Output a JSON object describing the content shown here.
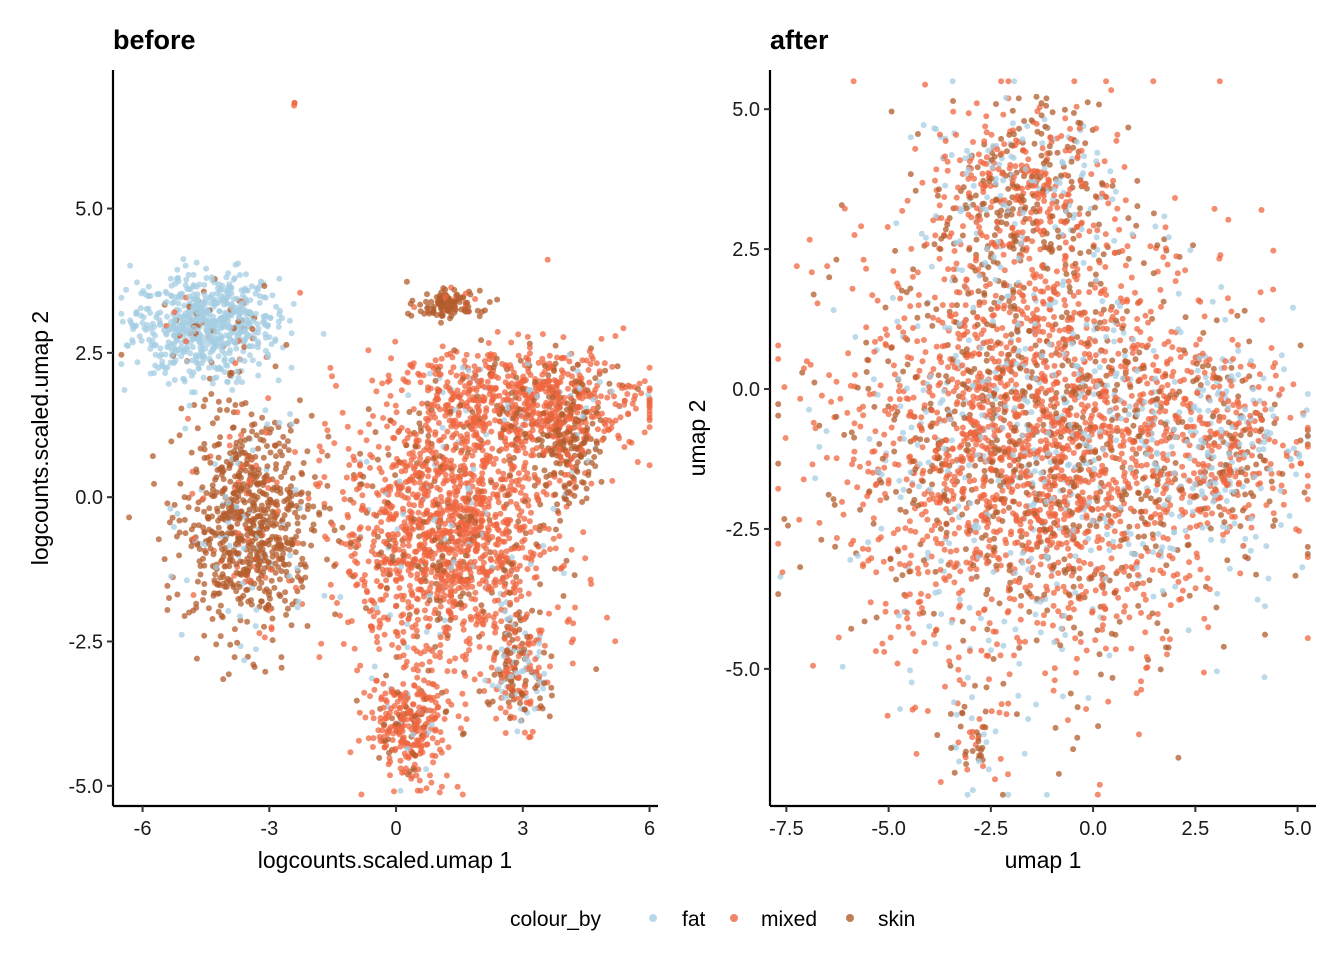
{
  "colors": {
    "fat": "#a6cee3",
    "mixed": "#f0653f",
    "skin": "#b35c2c"
  },
  "legend": {
    "title": "colour_by",
    "items": [
      "fat",
      "mixed",
      "skin"
    ],
    "position": "bottom"
  },
  "chart_data": [
    {
      "type": "scatter",
      "title": "before",
      "xlabel": "logcounts.scaled.umap 1",
      "ylabel": "logcounts.scaled.umap 2",
      "xlim": [
        -6.7,
        6.2
      ],
      "ylim": [
        -5.35,
        7.4
      ],
      "xticks": [
        "-6",
        "-3",
        "0",
        "3",
        "6"
      ],
      "xtick_values": [
        -6,
        -3,
        0,
        3,
        6
      ],
      "yticks": [
        "-5.0",
        "-2.5",
        "0.0",
        "2.5",
        "5.0"
      ],
      "ytick_values": [
        -5,
        -2.5,
        0,
        2.5,
        5
      ],
      "grid": false,
      "clusters": [
        {
          "center": [
            -4.5,
            3.0
          ],
          "spread": [
            0.85,
            0.45
          ],
          "n": 700,
          "mix": [
            0.93,
            0.02,
            0.05
          ]
        },
        {
          "center": [
            -3.5,
            -0.5
          ],
          "spread": [
            0.75,
            0.95
          ],
          "n": 800,
          "mix": [
            0.06,
            0.1,
            0.84
          ]
        },
        {
          "center": [
            1.2,
            -0.6
          ],
          "spread": [
            1.25,
            1.1
          ],
          "n": 1500,
          "mix": [
            0.03,
            0.82,
            0.15
          ]
        },
        {
          "center": [
            3.0,
            1.7
          ],
          "spread": [
            1.5,
            0.45
          ],
          "n": 700,
          "mix": [
            0.05,
            0.8,
            0.15
          ]
        },
        {
          "center": [
            1.2,
            3.35
          ],
          "spread": [
            0.4,
            0.12
          ],
          "n": 120,
          "mix": [
            0.0,
            0.1,
            0.9
          ]
        },
        {
          "center": [
            0.3,
            -4.0
          ],
          "spread": [
            0.5,
            0.45
          ],
          "n": 300,
          "mix": [
            0.05,
            0.8,
            0.15
          ]
        },
        {
          "center": [
            2.9,
            -3.0
          ],
          "spread": [
            0.35,
            0.5
          ],
          "n": 200,
          "mix": [
            0.25,
            0.35,
            0.4
          ]
        },
        {
          "center": [
            4.0,
            0.8
          ],
          "spread": [
            0.4,
            0.5
          ],
          "n": 200,
          "mix": [
            0.05,
            0.2,
            0.75
          ]
        },
        {
          "center": [
            -2.4,
            6.8
          ],
          "spread": [
            0.02,
            0.02
          ],
          "n": 3,
          "mix": [
            0.0,
            1.0,
            0.0
          ]
        }
      ]
    },
    {
      "type": "scatter",
      "title": "after",
      "xlabel": "umap 1",
      "ylabel": "umap 2",
      "xlim": [
        -7.9,
        5.45
      ],
      "ylim": [
        -7.45,
        5.7
      ],
      "xticks": [
        "-7.5",
        "-5.0",
        "-2.5",
        "0.0",
        "2.5",
        "5.0"
      ],
      "xtick_values": [
        -7.5,
        -5,
        -2.5,
        0,
        2.5,
        5
      ],
      "yticks": [
        "-5.0",
        "-2.5",
        "0.0",
        "2.5",
        "5.0"
      ],
      "ytick_values": [
        -5,
        -2.5,
        0,
        2.5,
        5
      ],
      "grid": false,
      "clusters": [
        {
          "center": [
            -1.3,
            -1.0
          ],
          "spread": [
            2.3,
            2.0
          ],
          "n": 3000,
          "mix": [
            0.15,
            0.6,
            0.25
          ]
        },
        {
          "center": [
            -1.8,
            3.6
          ],
          "spread": [
            1.1,
            0.8
          ],
          "n": 500,
          "mix": [
            0.2,
            0.45,
            0.35
          ]
        },
        {
          "center": [
            3.3,
            -1.0
          ],
          "spread": [
            1.0,
            0.9
          ],
          "n": 400,
          "mix": [
            0.35,
            0.45,
            0.2
          ]
        },
        {
          "center": [
            -3.0,
            -6.3
          ],
          "spread": [
            0.35,
            0.4
          ],
          "n": 50,
          "mix": [
            0.3,
            0.2,
            0.5
          ]
        }
      ]
    }
  ]
}
